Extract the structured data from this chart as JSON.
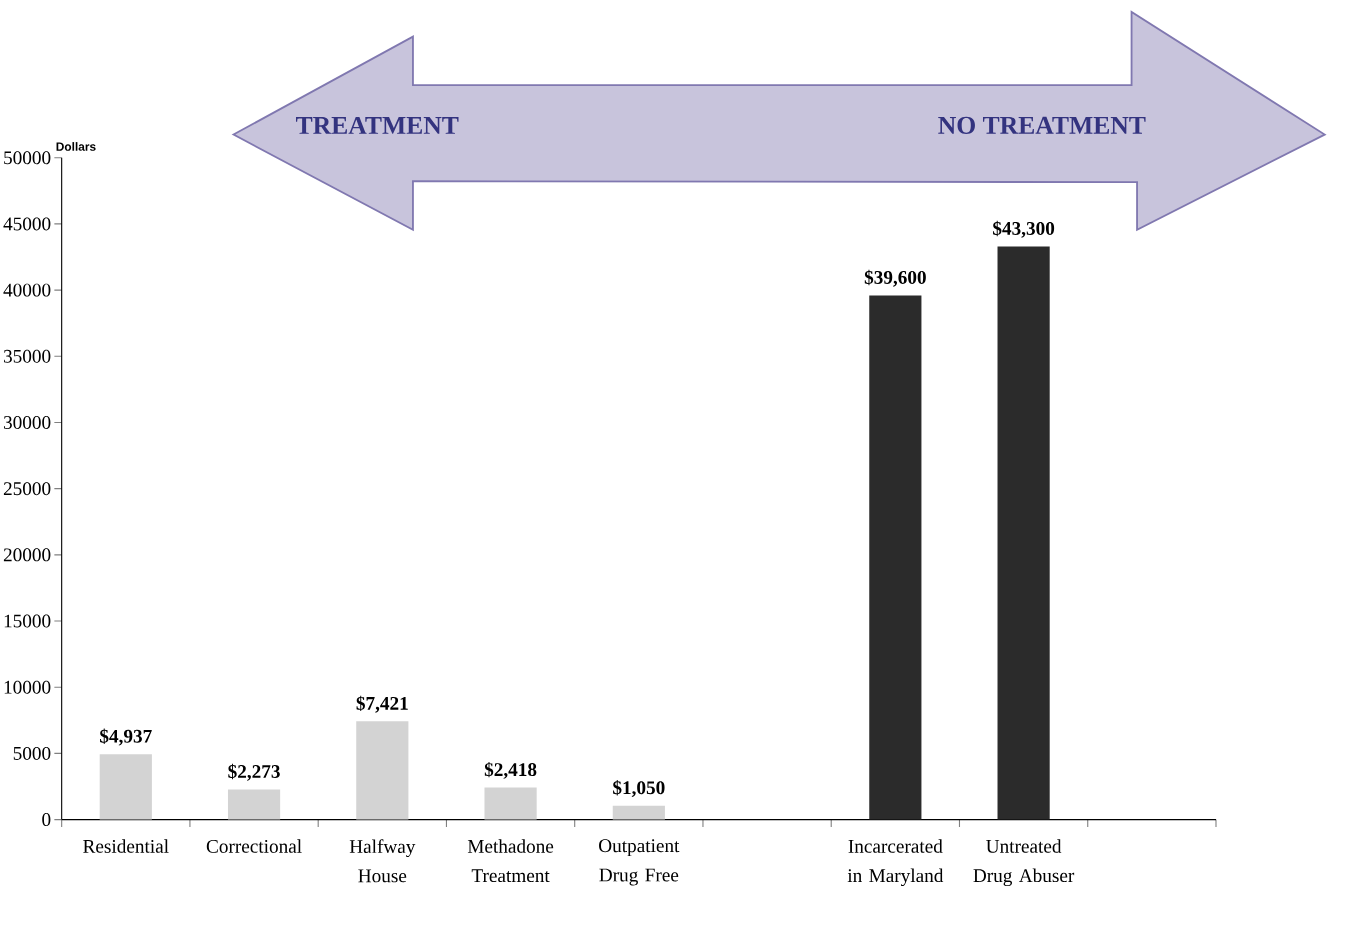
{
  "chart_data": {
    "type": "bar",
    "ylabel": "Dollars",
    "annotations": [
      "TREATMENT",
      "NO TREATMENT"
    ],
    "categories": [
      "Residential",
      "Correctional",
      "Halfway House",
      "Methadone Treatment",
      "Outpatient Drug Free",
      null,
      "Incarcerated in Maryland",
      "Untreated Drug Abuser",
      null
    ],
    "values": [
      4937,
      2273,
      7421,
      2418,
      1050,
      null,
      39600,
      43300,
      null
    ],
    "colors": [
      "#d3d3d3",
      "#d3d3d3",
      "#d3d3d3",
      "#d3d3d3",
      "#d3d3d3",
      "#d3d3d3",
      "#2b2b2b",
      "#2b2b2b",
      "#2b2b2b"
    ],
    "value_labels": [
      "$4,937",
      "$2,273",
      "$7,421",
      "$2,418",
      "$1,050",
      null,
      "$39,600",
      "$43,300",
      null
    ],
    "ylim": [
      0,
      50000
    ],
    "yticks": [
      0,
      5000,
      10000,
      15000,
      20000,
      25000,
      30000,
      35000,
      40000,
      45000,
      50000
    ]
  }
}
